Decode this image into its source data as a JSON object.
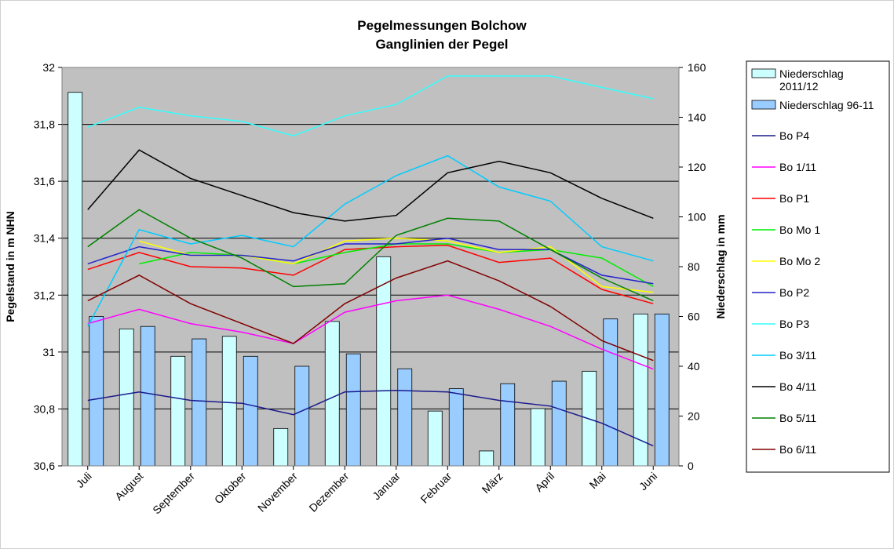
{
  "chart_data": {
    "type": "bar+line",
    "title": "Pegelmessungen Bolchow",
    "subtitle": "Ganglinien der Pegel",
    "ylabel_left": "Pegelstand in m NHN",
    "ylabel_right": "Niederschlag in mm",
    "ylim_left": [
      30.6,
      32
    ],
    "yticks_left": [
      "30,6",
      "30,8",
      "31",
      "31,2",
      "31,4",
      "31,6",
      "31,8",
      "32"
    ],
    "ylim_right": [
      0,
      160
    ],
    "yticks_right": [
      "0",
      "20",
      "40",
      "60",
      "80",
      "100",
      "120",
      "140",
      "160"
    ],
    "categories": [
      "Juli",
      "August",
      "September",
      "Oktober",
      "November",
      "Dezember",
      "Januar",
      "Februar",
      "März",
      "April",
      "Mai",
      "Juni"
    ],
    "grid": true,
    "legend_position": "right",
    "bar_series": [
      {
        "name": "Niederschlag 2011/12",
        "legend_lines": [
          "Niederschlag",
          "2011/12"
        ],
        "color": "#ccffff",
        "values": [
          150,
          55,
          44,
          52,
          15,
          58,
          84,
          22,
          6,
          23,
          38,
          61
        ]
      },
      {
        "name": "Niederschlag 96-11",
        "legend_lines": [
          "Niederschlag 96-11"
        ],
        "color": "#99ccff",
        "values": [
          60,
          56,
          51,
          44,
          40,
          45,
          39,
          31,
          33,
          34,
          59,
          61
        ]
      }
    ],
    "line_series": [
      {
        "name": "Bo P4",
        "color": "#1a1a8c",
        "values": [
          30.83,
          30.86,
          30.83,
          30.82,
          30.78,
          30.86,
          30.865,
          30.86,
          30.83,
          30.81,
          30.75,
          30.67
        ]
      },
      {
        "name": "Bo 1/11",
        "color": "#ff00ff",
        "values": [
          31.1,
          31.15,
          31.1,
          31.07,
          31.03,
          31.14,
          31.18,
          31.2,
          31.15,
          31.09,
          31.01,
          30.94
        ]
      },
      {
        "name": "Bo P1",
        "color": "#ff0000",
        "values": [
          31.29,
          31.35,
          31.3,
          31.295,
          31.27,
          31.36,
          31.37,
          31.375,
          31.315,
          31.33,
          31.22,
          31.17
        ]
      },
      {
        "name": "Bo Mo 1",
        "color": "#00ee00",
        "values": [
          null,
          31.31,
          31.35,
          31.34,
          31.31,
          31.35,
          31.38,
          31.38,
          31.35,
          31.36,
          31.33,
          31.23
        ]
      },
      {
        "name": "Bo Mo 2",
        "color": "#ffff00",
        "values": [
          null,
          31.39,
          31.34,
          31.34,
          31.31,
          31.39,
          31.4,
          31.39,
          31.35,
          31.37,
          31.23,
          31.21
        ]
      },
      {
        "name": "Bo P2",
        "color": "#2222cc",
        "values": [
          31.31,
          31.37,
          31.34,
          31.34,
          31.32,
          31.38,
          31.38,
          31.4,
          31.36,
          31.36,
          31.27,
          31.24
        ]
      },
      {
        "name": "Bo P3",
        "color": "#33ffff",
        "values": [
          31.79,
          31.86,
          31.83,
          31.81,
          31.76,
          31.83,
          31.87,
          31.97,
          31.97,
          31.97,
          31.93,
          31.89
        ]
      },
      {
        "name": "Bo 3/11",
        "color": "#00ccff",
        "values": [
          31.09,
          31.43,
          31.38,
          31.41,
          31.37,
          31.52,
          31.62,
          31.69,
          31.58,
          31.53,
          31.37,
          31.32
        ]
      },
      {
        "name": "Bo 4/11",
        "color": "#000000",
        "values": [
          31.5,
          31.71,
          31.61,
          31.55,
          31.49,
          31.46,
          31.48,
          31.63,
          31.67,
          31.63,
          31.54,
          31.47
        ]
      },
      {
        "name": "Bo 5/11",
        "color": "#008000",
        "values": [
          31.37,
          31.5,
          31.4,
          31.33,
          31.23,
          31.24,
          31.41,
          31.47,
          31.46,
          31.36,
          31.26,
          31.18
        ]
      },
      {
        "name": "Bo 6/11",
        "color": "#800000",
        "values": [
          31.18,
          31.27,
          31.17,
          31.1,
          31.03,
          31.17,
          31.26,
          31.32,
          31.25,
          31.16,
          31.04,
          30.97
        ]
      }
    ]
  }
}
